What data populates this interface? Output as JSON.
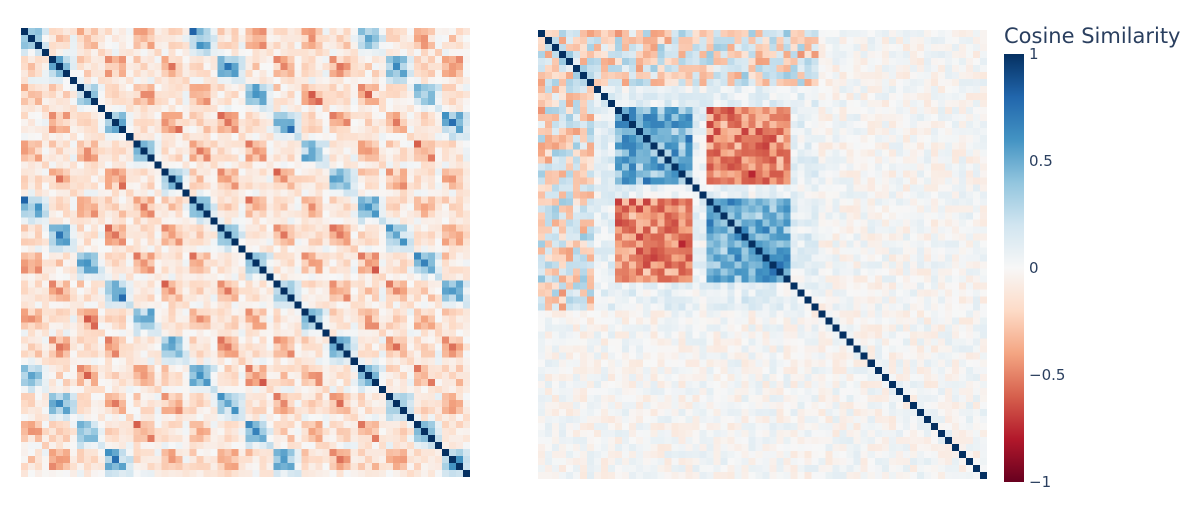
{
  "chart_data": [
    {
      "type": "heatmap",
      "title": "",
      "xlabel": "",
      "ylabel": "",
      "matrix_size": 64,
      "description_of_values": "pairwise cosine similarity; diagonal = 1; periodic block structure of alternating positive (blue) and negative (red) blocks",
      "diagonal_value": 1,
      "zlim": [
        -1,
        1
      ]
    },
    {
      "type": "heatmap",
      "title": "",
      "xlabel": "",
      "ylabel": "",
      "matrix_size": 64,
      "description_of_values": "pairwise cosine similarity; diagonal = 1; two strong positive clusters with strong negative cross-block in upper-left region, near-zero elsewhere",
      "diagonal_value": 1,
      "zlim": [
        -1,
        1
      ]
    }
  ],
  "colorbar": {
    "title": "Cosine Similarity",
    "ticks": [
      {
        "value": 1,
        "label": "1"
      },
      {
        "value": 0.5,
        "label": "0.5"
      },
      {
        "value": 0,
        "label": "0"
      },
      {
        "value": -0.5,
        "label": "−0.5"
      },
      {
        "value": -1,
        "label": "−1"
      }
    ],
    "colorscale": [
      "#67001f",
      "#b2182b",
      "#d6604d",
      "#f4a582",
      "#fddbc7",
      "#f7f7f7",
      "#d1e5f0",
      "#92c5de",
      "#4393c3",
      "#2166ac",
      "#053061"
    ]
  }
}
